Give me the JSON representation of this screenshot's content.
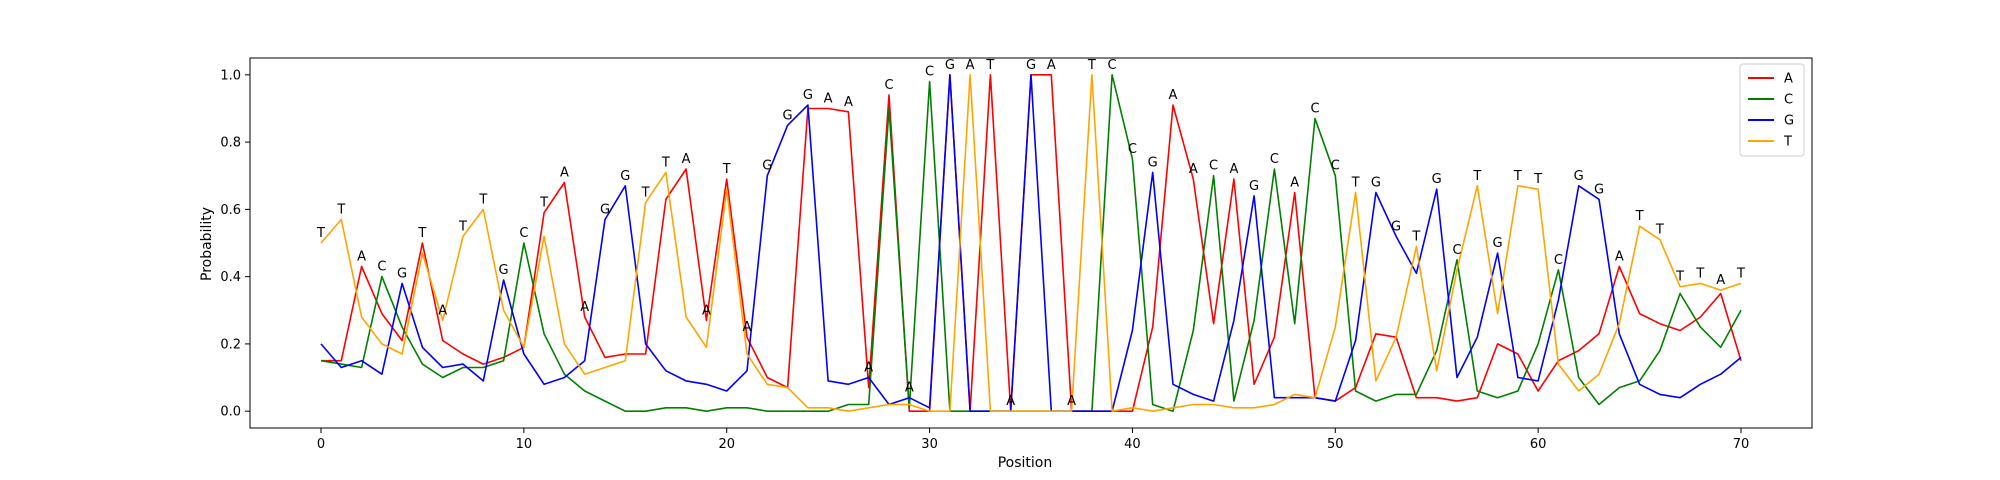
{
  "chart_data": {
    "type": "line",
    "title": "",
    "xlabel": "Position",
    "ylabel": "Probability",
    "xlim": [
      -3.5,
      73.5
    ],
    "ylim": [
      -0.05,
      1.05
    ],
    "xticks": [
      0,
      10,
      20,
      30,
      40,
      50,
      60,
      70
    ],
    "yticks": [
      0.0,
      0.2,
      0.4,
      0.6,
      0.8,
      1.0
    ],
    "xtick_labels": [
      "0",
      "10",
      "20",
      "30",
      "40",
      "50",
      "60",
      "70"
    ],
    "ytick_labels": [
      "0.0",
      "0.2",
      "0.4",
      "0.6",
      "0.8",
      "1.0"
    ],
    "legend_position": "top-right",
    "grid": false,
    "x": [
      0,
      1,
      2,
      3,
      4,
      5,
      6,
      7,
      8,
      9,
      10,
      11,
      12,
      13,
      14,
      15,
      16,
      17,
      18,
      19,
      20,
      21,
      22,
      23,
      24,
      25,
      26,
      27,
      28,
      29,
      30,
      31,
      32,
      33,
      34,
      35,
      36,
      37,
      38,
      39,
      40,
      41,
      42,
      43,
      44,
      45,
      46,
      47,
      48,
      49,
      50,
      51,
      52,
      53,
      54,
      55,
      56,
      57,
      58,
      59,
      60,
      61,
      62,
      63,
      64,
      65,
      66,
      67,
      68,
      69,
      70
    ],
    "series": [
      {
        "name": "A",
        "color": "#ff0000",
        "values": [
          0.15,
          0.15,
          0.43,
          0.29,
          0.21,
          0.5,
          0.21,
          0.17,
          0.14,
          0.16,
          0.19,
          0.59,
          0.68,
          0.28,
          0.16,
          0.17,
          0.17,
          0.63,
          0.72,
          0.27,
          0.69,
          0.22,
          0.1,
          0.07,
          0.9,
          0.9,
          0.89,
          0.07,
          0.94,
          0.0,
          0.0,
          1.0,
          0.0,
          1.0,
          0.0,
          1.0,
          1.0,
          0.0,
          0.0,
          0.0,
          0.0,
          0.25,
          0.91,
          0.69,
          0.26,
          0.69,
          0.08,
          0.22,
          0.65,
          0.04,
          0.03,
          0.07,
          0.23,
          0.22,
          0.04,
          0.04,
          0.03,
          0.04,
          0.2,
          0.17,
          0.06,
          0.15,
          0.18,
          0.23,
          0.43,
          0.29,
          0.26,
          0.24,
          0.28,
          0.35,
          0.15
        ]
      },
      {
        "name": "C",
        "color": "#008000",
        "values": [
          0.15,
          0.14,
          0.13,
          0.4,
          0.25,
          0.14,
          0.1,
          0.13,
          0.13,
          0.15,
          0.5,
          0.23,
          0.11,
          0.06,
          0.03,
          0.0,
          0.0,
          0.01,
          0.01,
          0.0,
          0.01,
          0.01,
          0.0,
          0.0,
          0.0,
          0.0,
          0.02,
          0.02,
          0.9,
          0.01,
          0.98,
          0.0,
          0.0,
          0.0,
          0.0,
          0.0,
          0.0,
          0.0,
          0.0,
          1.0,
          0.75,
          0.02,
          0.0,
          0.24,
          0.7,
          0.03,
          0.27,
          0.72,
          0.26,
          0.87,
          0.7,
          0.06,
          0.03,
          0.05,
          0.05,
          0.18,
          0.45,
          0.06,
          0.04,
          0.06,
          0.2,
          0.42,
          0.1,
          0.02,
          0.07,
          0.09,
          0.18,
          0.35,
          0.25,
          0.19,
          0.3
        ]
      },
      {
        "name": "G",
        "color": "#0000ff",
        "values": [
          0.2,
          0.13,
          0.15,
          0.11,
          0.38,
          0.19,
          0.13,
          0.14,
          0.09,
          0.39,
          0.17,
          0.08,
          0.1,
          0.15,
          0.57,
          0.67,
          0.2,
          0.12,
          0.09,
          0.08,
          0.06,
          0.12,
          0.7,
          0.85,
          0.91,
          0.09,
          0.08,
          0.1,
          0.02,
          0.04,
          0.01,
          1.0,
          0.0,
          0.0,
          0.0,
          1.0,
          0.0,
          0.0,
          0.0,
          0.0,
          0.24,
          0.71,
          0.08,
          0.05,
          0.03,
          0.27,
          0.64,
          0.04,
          0.04,
          0.04,
          0.03,
          0.21,
          0.65,
          0.52,
          0.41,
          0.66,
          0.1,
          0.22,
          0.47,
          0.1,
          0.09,
          0.33,
          0.67,
          0.63,
          0.23,
          0.08,
          0.05,
          0.04,
          0.08,
          0.11,
          0.16
        ]
      },
      {
        "name": "T",
        "color": "#ffa500",
        "values": [
          0.5,
          0.57,
          0.28,
          0.2,
          0.17,
          0.47,
          0.27,
          0.52,
          0.6,
          0.3,
          0.19,
          0.52,
          0.2,
          0.11,
          0.13,
          0.15,
          0.62,
          0.71,
          0.28,
          0.19,
          0.66,
          0.17,
          0.08,
          0.07,
          0.01,
          0.01,
          0.0,
          0.01,
          0.02,
          0.02,
          0.0,
          0.0,
          1.0,
          0.0,
          0.0,
          0.0,
          0.0,
          0.0,
          1.0,
          0.0,
          0.01,
          0.0,
          0.01,
          0.02,
          0.02,
          0.01,
          0.01,
          0.02,
          0.05,
          0.04,
          0.25,
          0.65,
          0.09,
          0.22,
          0.49,
          0.12,
          0.42,
          0.67,
          0.29,
          0.67,
          0.66,
          0.14,
          0.06,
          0.11,
          0.26,
          0.55,
          0.51,
          0.37,
          0.38,
          0.36,
          0.38
        ]
      }
    ],
    "base_calls": [
      "T",
      "T",
      "A",
      "C",
      "G",
      "T",
      "A",
      "T",
      "T",
      "G",
      "C",
      "T",
      "A",
      "A",
      "G",
      "G",
      "T",
      "T",
      "A",
      "A",
      "T",
      "A",
      "G",
      "G",
      "G",
      "A",
      "A",
      "A",
      "C",
      "A",
      "C",
      "G",
      "A",
      "T",
      "A",
      "G",
      "A",
      "A",
      "T",
      "C",
      "C",
      "G",
      "A",
      "A",
      "C",
      "A",
      "G",
      "C",
      "A",
      "C",
      "C",
      "T",
      "G",
      "G",
      "T",
      "G",
      "C",
      "T",
      "G",
      "T",
      "T",
      "C",
      "G",
      "G",
      "A",
      "T",
      "T",
      "T",
      "T",
      "A",
      "T"
    ]
  }
}
